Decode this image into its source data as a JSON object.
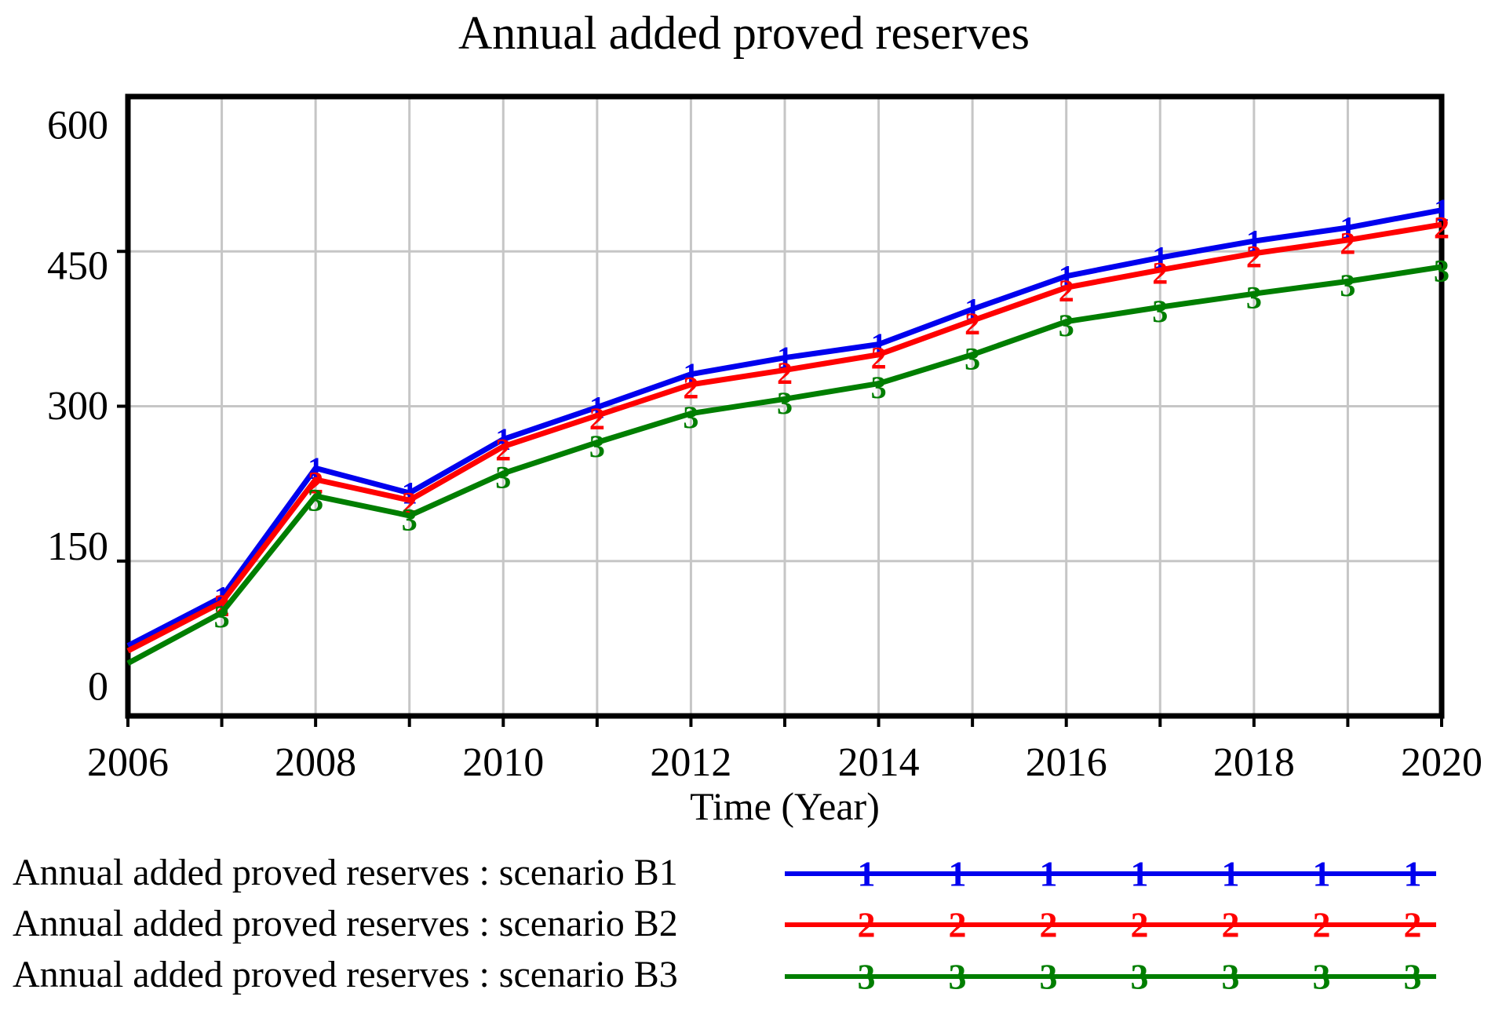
{
  "title": "Annual added proved reserves",
  "x_axis_label": "Time (Year)",
  "legend": {
    "items": [
      {
        "label": "Annual added proved reserves : scenario B1",
        "marker": "1",
        "color": "#0000EE"
      },
      {
        "label": "Annual added proved reserves : scenario B2",
        "marker": "2",
        "color": "#FF0000"
      },
      {
        "label": "Annual added proved reserves : scenario B3",
        "marker": "3",
        "color": "#007E00"
      }
    ]
  },
  "colors": {
    "background": "#FFFFFF",
    "frame": "#000000",
    "grid": "#C6C6C6",
    "text": "#000000",
    "series_blue": "#0000EE",
    "series_red": "#FF0000",
    "series_green": "#007E00"
  },
  "chart_data": {
    "type": "line",
    "title": "Annual added proved reserves",
    "xlabel": "Time (Year)",
    "ylabel": "",
    "xlim": [
      2006,
      2020
    ],
    "ylim": [
      0,
      600
    ],
    "x": [
      2006,
      2007,
      2008,
      2009,
      2010,
      2011,
      2012,
      2013,
      2014,
      2015,
      2016,
      2017,
      2018,
      2019,
      2020
    ],
    "xticks": [
      2006,
      2008,
      2010,
      2012,
      2014,
      2016,
      2018,
      2020
    ],
    "yticks": [
      0,
      150,
      300,
      450,
      600
    ],
    "grid": true,
    "legend_position": "bottom",
    "series": [
      {
        "name": "Annual added proved reserves : scenario B1",
        "marker": "1",
        "color": "#0000EE",
        "values": [
          68,
          115,
          240,
          216,
          268,
          299,
          331,
          347,
          360,
          394,
          426,
          444,
          460,
          473,
          490
        ]
      },
      {
        "name": "Annual added proved reserves : scenario B2",
        "marker": "2",
        "color": "#FF0000",
        "values": [
          63,
          110,
          229,
          209,
          261,
          291,
          321,
          335,
          350,
          383,
          415,
          432,
          448,
          461,
          476
        ]
      },
      {
        "name": "Annual added proved reserves : scenario B3",
        "marker": "3",
        "color": "#007E00",
        "values": [
          51,
          100,
          213,
          194,
          235,
          265,
          293,
          307,
          322,
          350,
          382,
          396,
          409,
          421,
          435
        ]
      }
    ]
  }
}
